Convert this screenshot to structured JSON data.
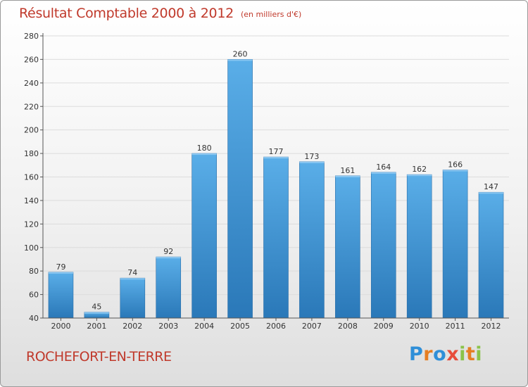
{
  "header": {
    "title": "Résultat Comptable 2000 à 2012",
    "subtitle": "(en milliers d'€)"
  },
  "footer": {
    "place": "ROCHEFORT-EN-TERRE",
    "logo": "Proxiti"
  },
  "colors": {
    "accent": "#c0392b",
    "bar_top": "#5aaee8",
    "bar_bottom": "#2a78b8"
  },
  "chart_data": {
    "type": "bar",
    "title": "Résultat Comptable 2000 à 2012",
    "xlabel": "",
    "ylabel": "",
    "categories": [
      "2000",
      "2001",
      "2002",
      "2003",
      "2004",
      "2005",
      "2006",
      "2007",
      "2008",
      "2009",
      "2010",
      "2011",
      "2012"
    ],
    "values": [
      79,
      45,
      74,
      92,
      180,
      260,
      177,
      173,
      161,
      164,
      162,
      166,
      147
    ],
    "ylim": [
      40,
      280
    ],
    "yticks": [
      40,
      60,
      80,
      100,
      120,
      140,
      160,
      180,
      200,
      220,
      240,
      260,
      280
    ],
    "grid": true
  }
}
